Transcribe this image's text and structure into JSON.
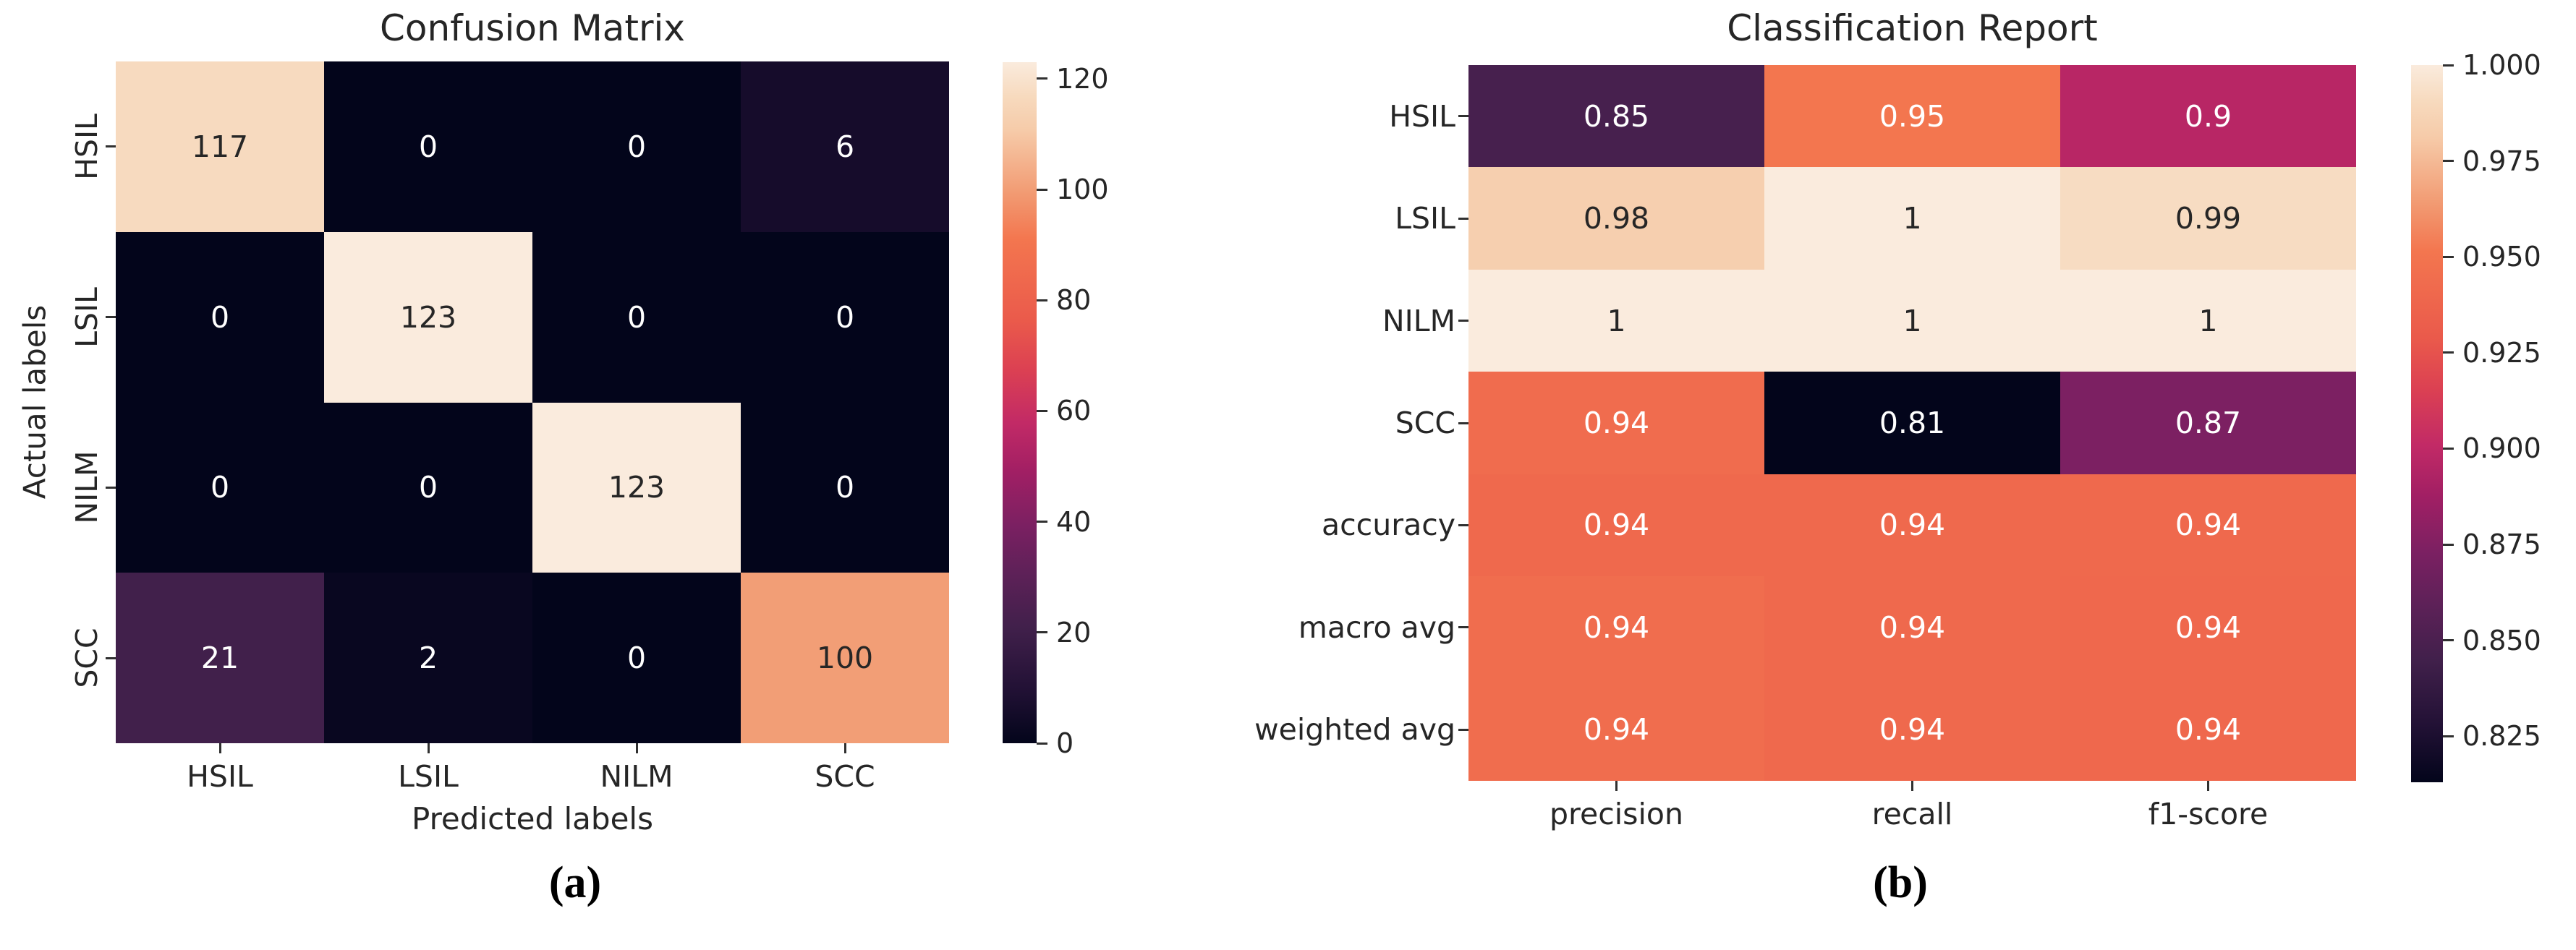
{
  "figure": {
    "captions": [
      "(a)",
      "(b)"
    ]
  },
  "style": {
    "colormap_name": "rocket",
    "colormap_stops": [
      [
        0.0,
        "#03051b"
      ],
      [
        0.08,
        "#221135"
      ],
      [
        0.17,
        "#41204b"
      ],
      [
        0.25,
        "#5e2158"
      ],
      [
        0.32,
        "#7b2062"
      ],
      [
        0.4,
        "#a21f64"
      ],
      [
        0.47,
        "#c22a66"
      ],
      [
        0.55,
        "#dc4152"
      ],
      [
        0.62,
        "#ea5a4b"
      ],
      [
        0.68,
        "#ef684d"
      ],
      [
        0.74,
        "#f3764f"
      ],
      [
        0.81,
        "#f29c74"
      ],
      [
        0.9,
        "#f6cba9"
      ],
      [
        0.95,
        "#f7dabe"
      ],
      [
        1.0,
        "#faebdd"
      ]
    ],
    "annot_color_dark": "#262626",
    "annot_color_light": "#ffffff",
    "tick_mark_color": "#303030"
  },
  "chart_data": [
    {
      "type": "heatmap",
      "title": "Confusion Matrix",
      "xlabel": "Predicted labels",
      "ylabel": "Actual labels",
      "x_tick_labels": [
        "HSIL",
        "LSIL",
        "NILM",
        "SCC"
      ],
      "y_tick_labels": [
        "HSIL",
        "LSIL",
        "NILM",
        "SCC"
      ],
      "annotations": [
        [
          "117",
          "0",
          "0",
          "6"
        ],
        [
          "0",
          "123",
          "0",
          "0"
        ],
        [
          "0",
          "0",
          "123",
          "0"
        ],
        [
          "21",
          "2",
          "0",
          "100"
        ]
      ],
      "values": [
        [
          117,
          0,
          0,
          6
        ],
        [
          0,
          123,
          0,
          0
        ],
        [
          0,
          0,
          123,
          0
        ],
        [
          21,
          2,
          0,
          100
        ]
      ],
      "vmin": 0,
      "vmax": 123,
      "colorbar": {
        "tick_values": [
          0,
          20,
          40,
          60,
          80,
          100,
          120
        ],
        "tick_labels": [
          "0",
          "20",
          "40",
          "60",
          "80",
          "100",
          "120"
        ]
      }
    },
    {
      "type": "heatmap",
      "title": "Classification Report",
      "xlabel": "",
      "ylabel": "",
      "x_tick_labels": [
        "precision",
        "recall",
        "f1-score"
      ],
      "y_tick_labels": [
        "HSIL",
        "LSIL",
        "NILM",
        "SCC",
        "accuracy",
        "macro avg",
        "weighted avg"
      ],
      "annotations": [
        [
          "0.85",
          "0.95",
          "0.9"
        ],
        [
          "0.98",
          "1",
          "0.99"
        ],
        [
          "1",
          "1",
          "1"
        ],
        [
          "0.94",
          "0.81",
          "0.87"
        ],
        [
          "0.94",
          "0.94",
          "0.94"
        ],
        [
          "0.94",
          "0.94",
          "0.94"
        ],
        [
          "0.94",
          "0.94",
          "0.94"
        ]
      ],
      "values": [
        [
          0.8478,
          0.9512,
          0.8966
        ],
        [
          0.984,
          1.0,
          0.9919
        ],
        [
          1.0,
          1.0,
          1.0
        ],
        [
          0.9434,
          0.813,
          0.8734
        ],
        [
          0.9411,
          0.9411,
          0.9411
        ],
        [
          0.9438,
          0.9411,
          0.9405
        ],
        [
          0.9438,
          0.9411,
          0.9405
        ]
      ],
      "vmin": 0.813,
      "vmax": 1.0,
      "colorbar": {
        "tick_values": [
          0.825,
          0.85,
          0.875,
          0.9,
          0.925,
          0.95,
          0.975,
          1.0
        ],
        "tick_labels": [
          "0.825",
          "0.850",
          "0.875",
          "0.900",
          "0.925",
          "0.950",
          "0.975",
          "1.000"
        ]
      }
    }
  ]
}
